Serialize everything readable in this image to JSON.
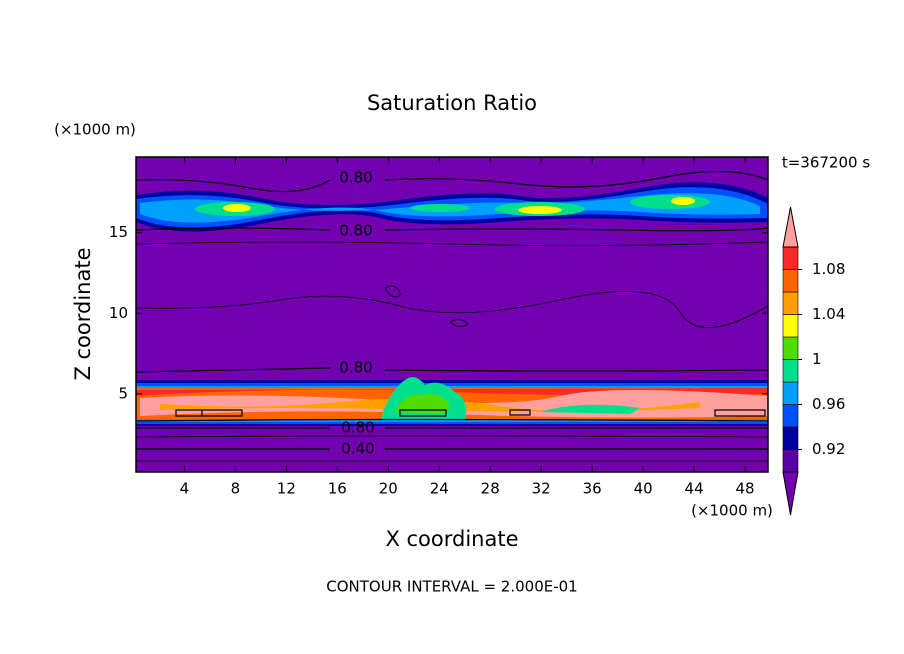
{
  "chart_data": {
    "type": "contour",
    "title": "Saturation Ratio",
    "x_label": "X coordinate",
    "y_label": "Z coordinate",
    "x_unit": "(×1000 m)",
    "y_unit": "(×1000 m)",
    "time_label": "t=367200 s",
    "footer": "CONTOUR INTERVAL = 2.000E-01",
    "xlim": [
      0.2,
      49.8
    ],
    "xticks": [
      4,
      8,
      12,
      16,
      20,
      24,
      28,
      32,
      36,
      40,
      44,
      48
    ],
    "ylim": [
      0.15,
      19.7
    ],
    "yticks": [
      5,
      10,
      15
    ],
    "contour_labels": [
      "0.80",
      "0.80",
      "0.80",
      "0.80",
      "0.40"
    ],
    "colorbar": {
      "levels": [
        0.9,
        0.92,
        0.94,
        0.96,
        0.98,
        1,
        1.02,
        1.04,
        1.06,
        1.08,
        1.1
      ],
      "colors": [
        "#7300b0",
        "#5a00a8",
        "#0000a0",
        "#0050ff",
        "#00a0ff",
        "#00e08c",
        "#50dc00",
        "#ffff00",
        "#ffa000",
        "#ff6400",
        "#ff2828",
        "#ffa0a0"
      ],
      "ticks": [
        0.92,
        0.96,
        1,
        1.04,
        1.08
      ]
    }
  }
}
